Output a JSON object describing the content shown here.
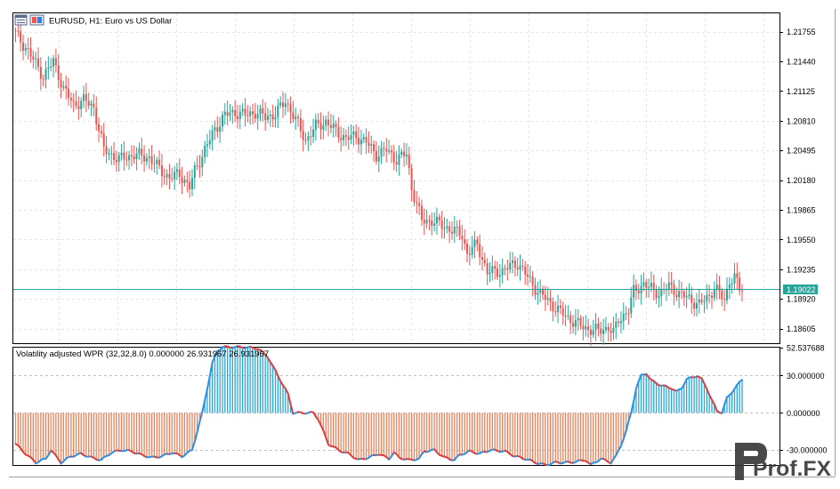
{
  "main_chart": {
    "symbol_title": "EURUSD, H1:  Euro vs US Dollar",
    "price_ticks": [
      "1.21755",
      "1.21440",
      "1.21125",
      "1.20810",
      "1.20495",
      "1.20180",
      "1.19865",
      "1.19550",
      "1.19235",
      "1.18920",
      "1.18605"
    ],
    "current_price_label": "1.19022",
    "current_price": 1.19022,
    "colors": {
      "bull": "#26a69a",
      "bear": "#ef5350",
      "price_line": "#26a69a",
      "grid": "#e6e6e6"
    }
  },
  "indicator": {
    "title": "Volatility adjusted WPR (32,32,8.0) 0.000000 26.931967 26.931967",
    "axis_ticks": [
      "52.537688",
      "30.000000",
      "0.000000",
      "-30.000000"
    ],
    "levels": [
      30,
      0,
      -30
    ],
    "colors": {
      "positive": "#29a8d6",
      "negative": "#e8825a",
      "line_up": "#2f8fe0",
      "line_down": "#d94040"
    }
  },
  "watermark": {
    "text": "Prof.FX"
  },
  "chart_data": [
    {
      "type": "candlestick",
      "title": "EURUSD, H1:  Euro vs US Dollar",
      "ylim": [
        1.1845,
        1.2195
      ],
      "grid": true,
      "price_path": [
        [
          0,
          1.2177
        ],
        [
          6,
          1.2155
        ],
        [
          12,
          1.2128
        ],
        [
          16,
          1.2144
        ],
        [
          20,
          1.2115
        ],
        [
          24,
          1.2098
        ],
        [
          28,
          1.2103
        ],
        [
          32,
          1.2095
        ],
        [
          36,
          1.205
        ],
        [
          42,
          1.204
        ],
        [
          48,
          1.2045
        ],
        [
          54,
          1.2042
        ],
        [
          58,
          1.203
        ],
        [
          62,
          1.202
        ],
        [
          66,
          1.2025
        ],
        [
          70,
          1.201
        ],
        [
          72,
          1.2028
        ],
        [
          76,
          1.205
        ],
        [
          80,
          1.2072
        ],
        [
          84,
          1.2087
        ],
        [
          88,
          1.209
        ],
        [
          92,
          1.2087
        ],
        [
          96,
          1.209
        ],
        [
          100,
          1.2085
        ],
        [
          104,
          1.2088
        ],
        [
          108,
          1.2102
        ],
        [
          112,
          1.2082
        ],
        [
          116,
          1.206
        ],
        [
          120,
          1.2075
        ],
        [
          124,
          1.208
        ],
        [
          128,
          1.207
        ],
        [
          132,
          1.2062
        ],
        [
          136,
          1.2065
        ],
        [
          140,
          1.2058
        ],
        [
          144,
          1.2045
        ],
        [
          148,
          1.205
        ],
        [
          152,
          1.204
        ],
        [
          156,
          1.2046
        ],
        [
          158,
          1.201
        ],
        [
          162,
          1.1975
        ],
        [
          166,
          1.1975
        ],
        [
          170,
          1.197
        ],
        [
          174,
          1.1965
        ],
        [
          178,
          1.196
        ],
        [
          180,
          1.194
        ],
        [
          184,
          1.195
        ],
        [
          186,
          1.1935
        ],
        [
          188,
          1.192
        ],
        [
          194,
          1.1922
        ],
        [
          198,
          1.1928
        ],
        [
          200,
          1.193
        ],
        [
          204,
          1.1915
        ],
        [
          208,
          1.19
        ],
        [
          212,
          1.189
        ],
        [
          216,
          1.188
        ],
        [
          220,
          1.1872
        ],
        [
          224,
          1.1865
        ],
        [
          228,
          1.186
        ],
        [
          232,
          1.1858
        ],
        [
          236,
          1.1862
        ],
        [
          238,
          1.1855
        ],
        [
          240,
          1.187
        ],
        [
          244,
          1.188
        ],
        [
          246,
          1.19
        ],
        [
          250,
          1.1908
        ],
        [
          252,
          1.1904
        ],
        [
          256,
          1.1898
        ],
        [
          260,
          1.1905
        ],
        [
          264,
          1.1898
        ],
        [
          268,
          1.1892
        ],
        [
          272,
          1.1886
        ],
        [
          276,
          1.1895
        ],
        [
          278,
          1.1905
        ],
        [
          282,
          1.189
        ],
        [
          284,
          1.1912
        ],
        [
          286,
          1.1915
        ],
        [
          288,
          1.1902
        ]
      ]
    },
    {
      "type": "histogram",
      "title": "Volatility adjusted WPR (32,32,8.0) 0.000000 26.931967 26.931967",
      "ylim": [
        -42,
        52.537688
      ],
      "values_path": [
        [
          0,
          -25
        ],
        [
          4,
          -33
        ],
        [
          8,
          -40
        ],
        [
          12,
          -37
        ],
        [
          14,
          -30
        ],
        [
          18,
          -40
        ],
        [
          22,
          -35
        ],
        [
          26,
          -33
        ],
        [
          30,
          -36
        ],
        [
          34,
          -38
        ],
        [
          38,
          -32
        ],
        [
          42,
          -30
        ],
        [
          46,
          -31
        ],
        [
          50,
          -34
        ],
        [
          54,
          -36
        ],
        [
          58,
          -35
        ],
        [
          62,
          -32
        ],
        [
          66,
          -35
        ],
        [
          70,
          -30
        ],
        [
          72,
          -15
        ],
        [
          74,
          0
        ],
        [
          76,
          20
        ],
        [
          78,
          40
        ],
        [
          80,
          50
        ],
        [
          82,
          53
        ],
        [
          90,
          53
        ],
        [
          96,
          52
        ],
        [
          100,
          45
        ],
        [
          104,
          30
        ],
        [
          108,
          15
        ],
        [
          110,
          0
        ],
        [
          114,
          0
        ],
        [
          118,
          0
        ],
        [
          120,
          -5
        ],
        [
          124,
          -25
        ],
        [
          128,
          -30
        ],
        [
          132,
          -33
        ],
        [
          136,
          -38
        ],
        [
          140,
          -36
        ],
        [
          144,
          -33
        ],
        [
          148,
          -37
        ],
        [
          150,
          -32
        ],
        [
          152,
          -36
        ],
        [
          156,
          -38
        ],
        [
          160,
          -37
        ],
        [
          162,
          -31
        ],
        [
          166,
          -30
        ],
        [
          170,
          -36
        ],
        [
          174,
          -38
        ],
        [
          176,
          -34
        ],
        [
          180,
          -31
        ],
        [
          184,
          -33
        ],
        [
          188,
          -30
        ],
        [
          194,
          -31
        ],
        [
          198,
          -35
        ],
        [
          202,
          -37
        ],
        [
          206,
          -40
        ],
        [
          210,
          -42
        ],
        [
          214,
          -40
        ],
        [
          220,
          -40
        ],
        [
          226,
          -38
        ],
        [
          228,
          -42
        ],
        [
          232,
          -37
        ],
        [
          236,
          -40
        ],
        [
          238,
          -35
        ],
        [
          240,
          -26
        ],
        [
          242,
          -15
        ],
        [
          244,
          0
        ],
        [
          246,
          20
        ],
        [
          248,
          30
        ],
        [
          250,
          32
        ],
        [
          252,
          26
        ],
        [
          256,
          22
        ],
        [
          260,
          20
        ],
        [
          262,
          17
        ],
        [
          264,
          20
        ],
        [
          266,
          27
        ],
        [
          270,
          30
        ],
        [
          272,
          27
        ],
        [
          274,
          20
        ],
        [
          276,
          10
        ],
        [
          278,
          2
        ],
        [
          280,
          0
        ],
        [
          282,
          12
        ],
        [
          284,
          17
        ],
        [
          286,
          22
        ],
        [
          288,
          27
        ]
      ]
    }
  ]
}
